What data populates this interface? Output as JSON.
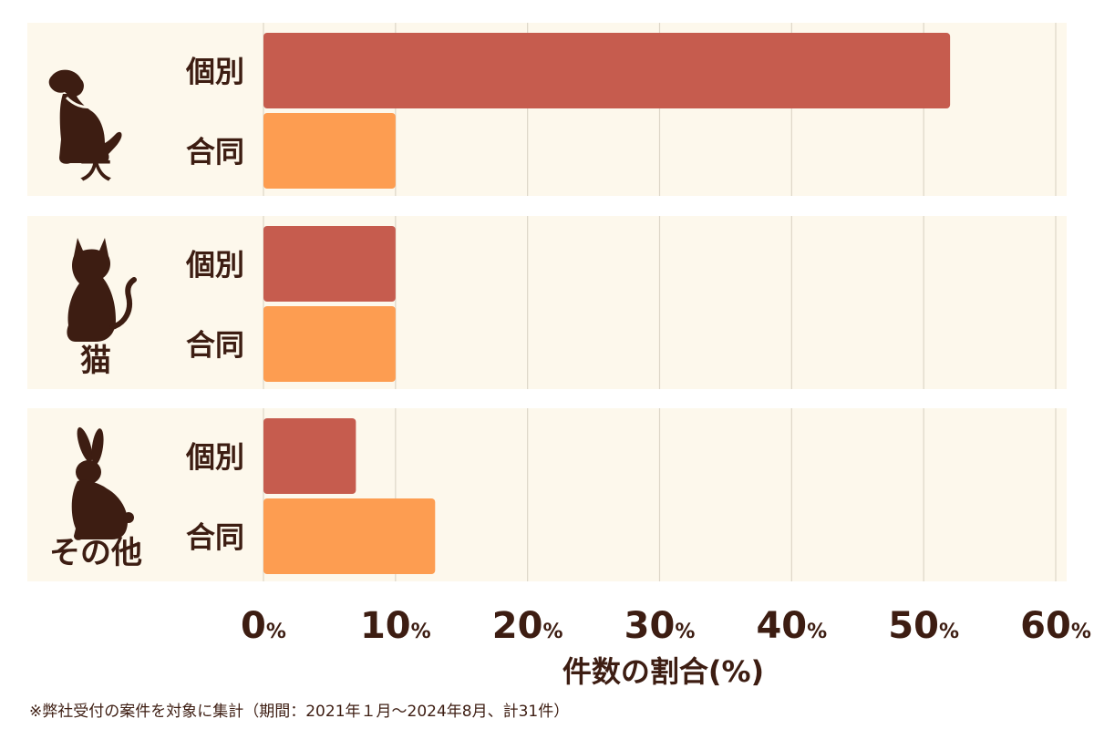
{
  "chart_data": {
    "type": "bar",
    "orientation": "horizontal",
    "groups": [
      {
        "label": "犬",
        "icon": "dog-icon",
        "bars": [
          {
            "label": "個別",
            "value": 52.0
          },
          {
            "label": "合同",
            "value": 10.0
          }
        ]
      },
      {
        "label": "猫",
        "icon": "cat-icon",
        "bars": [
          {
            "label": "個別",
            "value": 10.0
          },
          {
            "label": "合同",
            "value": 10.0
          }
        ]
      },
      {
        "label": "その他",
        "icon": "rabbit-icon",
        "bars": [
          {
            "label": "個別",
            "value": 7.0
          },
          {
            "label": "合同",
            "value": 13.0
          }
        ]
      }
    ],
    "series": [
      {
        "name": "個別",
        "color": "#c65c4e"
      },
      {
        "name": "合同",
        "color": "#fd9d51"
      }
    ],
    "xlim": [
      0,
      60
    ],
    "xticks": [
      {
        "num": "0",
        "unit": "%"
      },
      {
        "num": "10",
        "unit": "%"
      },
      {
        "num": "20",
        "unit": "%"
      },
      {
        "num": "30",
        "unit": "%"
      },
      {
        "num": "40",
        "unit": "%"
      },
      {
        "num": "50",
        "unit": "%"
      },
      {
        "num": "60",
        "unit": "%"
      }
    ],
    "xlabel": "件数の割合(%)",
    "grid": true,
    "colors": {
      "panel_bg": "#fdf8ec",
      "grid": "#ddd6c8",
      "text": "#3d1d12"
    }
  },
  "footnote": "※弊社受付の案件を対象に集計（期間：2021年１月～2024年8月、計31件）"
}
